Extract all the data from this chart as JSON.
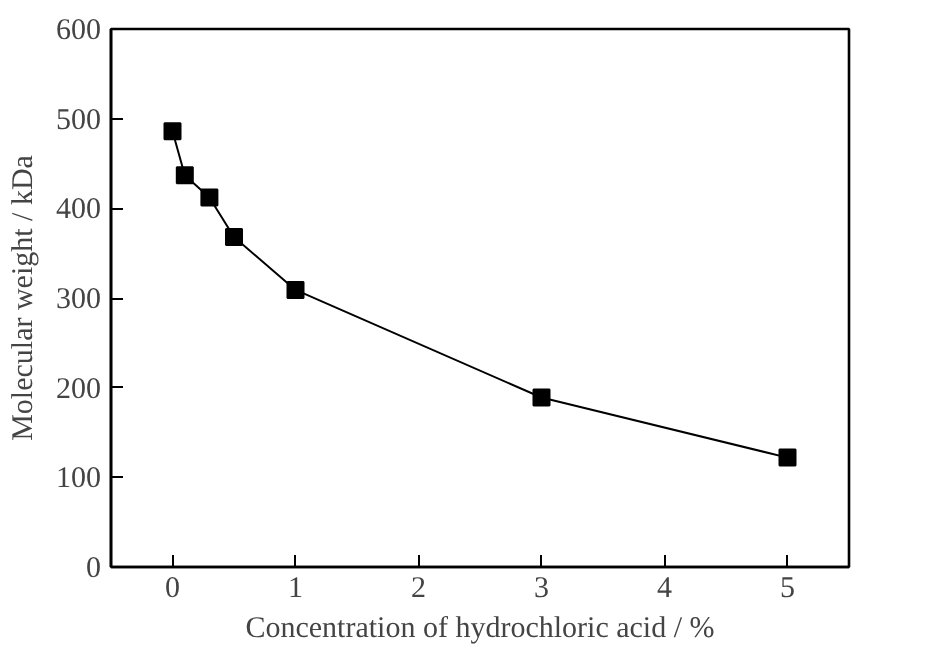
{
  "chart_data": {
    "type": "line",
    "xlabel": "Concentration of hydrochloric acid / %",
    "ylabel": "Molecular weight / kDa",
    "x": [
      0,
      0.1,
      0.3,
      0.5,
      1,
      3,
      5
    ],
    "series": [
      {
        "color": "#000000",
        "values": [
          486,
          437,
          412,
          368,
          309,
          189,
          122
        ]
      }
    ],
    "xlim": [
      -0.5,
      5.5
    ],
    "ylim": [
      0,
      600
    ],
    "xticks": [
      0,
      1,
      2,
      3,
      4,
      5
    ],
    "yticks": [
      0,
      100,
      200,
      300,
      400,
      500,
      600
    ],
    "marker": "square",
    "line_style": "solid"
  }
}
